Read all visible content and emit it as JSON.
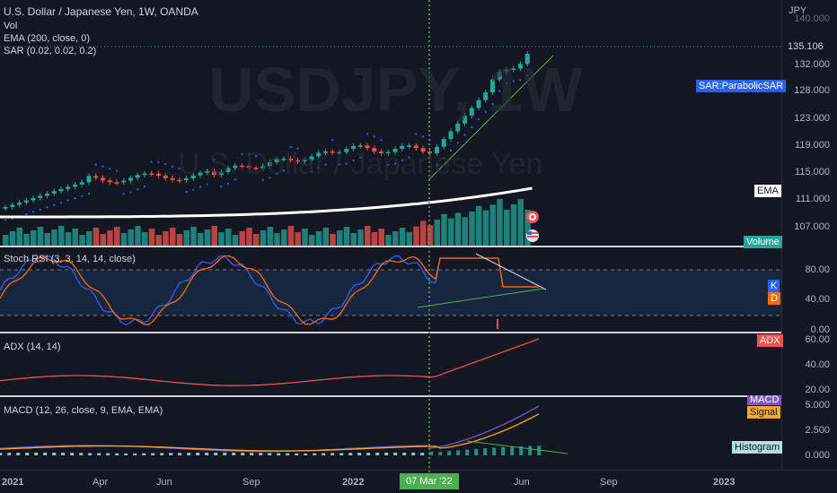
{
  "symbol": {
    "title": "U.S. Dollar / Japanese Yen, 1W, OANDA",
    "watermark": "USDJPY, 1W",
    "watermark_sub": "U.S. Dollar / Japanese Yen"
  },
  "legends": {
    "vol": "Vol",
    "ema": "EMA (200, close, 0)",
    "sar": "SAR (0.02, 0.02, 0.2)",
    "stoch": "Stoch RSI (3, 3, 14, 14, close)",
    "adx": "ADX (14, 14)",
    "macd": "MACD (12, 26, close, 9, EMA, EMA)"
  },
  "price_axis": {
    "currency": "JPY",
    "ticks": [
      "140.000",
      "132.000",
      "128.000",
      "123.000",
      "119.000",
      "115.000",
      "111.000",
      "107.000"
    ],
    "last_price": "135.106"
  },
  "tags": {
    "sar": "SAR:ParabolicSAR",
    "ema": "EMA",
    "volume": "Volume",
    "k": "K",
    "d": "D",
    "adx": "ADX",
    "macd": "MACD",
    "signal": "Signal",
    "histogram": "Histogram"
  },
  "stoch_axis": [
    "80.00",
    "40.00",
    "0.00"
  ],
  "adx_axis": [
    "60.00",
    "40.00",
    "20.00"
  ],
  "macd_axis": [
    "5.000",
    "2.500",
    "0.000"
  ],
  "time_axis": [
    "2021",
    "Apr",
    "Jun",
    "Sep",
    "2022",
    "Jun",
    "Sep",
    "2023"
  ],
  "cursor_label": "07 Mar '22",
  "colors": {
    "background": "#131722",
    "up": "#26a69a",
    "down": "#ef5350",
    "sar": "#2962ff",
    "ema": "#ffffff",
    "k_line": "#2962ff",
    "d_line": "#ff6d00",
    "adx_line": "#ef5350",
    "macd_line": "#7e57c2",
    "signal_line": "#ffa726",
    "trendline": "#4caf50",
    "cursor": "#4caf50"
  }
}
